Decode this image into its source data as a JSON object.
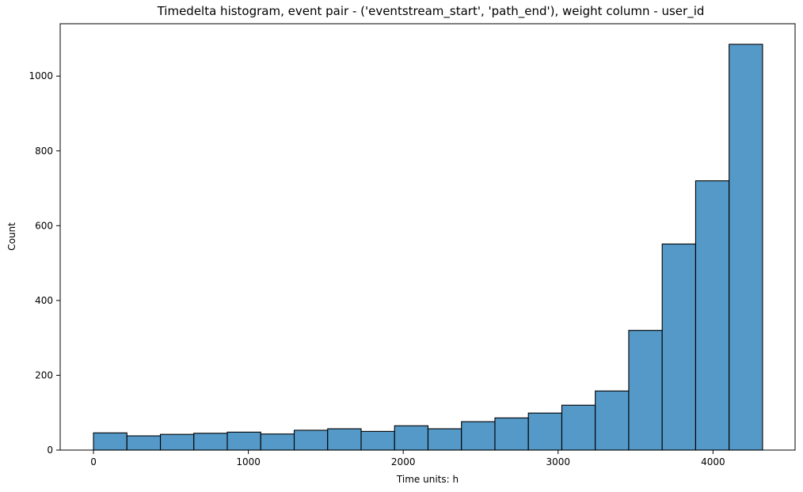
{
  "chart_data": {
    "type": "bar",
    "title": "Timedelta histogram, event pair - ('eventstream_start', 'path_end'), weight column - user_id",
    "xlabel": "Time units: h",
    "ylabel": "Count",
    "xlim": [
      -215,
      4530
    ],
    "ylim": [
      0,
      1140
    ],
    "xticks": [
      0,
      1000,
      2000,
      3000,
      4000
    ],
    "yticks": [
      0,
      200,
      400,
      600,
      800,
      1000
    ],
    "bin_edges": [
      0,
      216,
      432,
      648,
      864,
      1080,
      1296,
      1512,
      1728,
      1944,
      2160,
      2376,
      2592,
      2808,
      3024,
      3240,
      3456,
      3672,
      3888,
      4104,
      4320
    ],
    "values": [
      46,
      38,
      42,
      45,
      48,
      43,
      53,
      57,
      50,
      65,
      57,
      76,
      86,
      99,
      120,
      158,
      320,
      551,
      720,
      1085
    ],
    "grid": false,
    "bar_color": "#5499c7"
  }
}
